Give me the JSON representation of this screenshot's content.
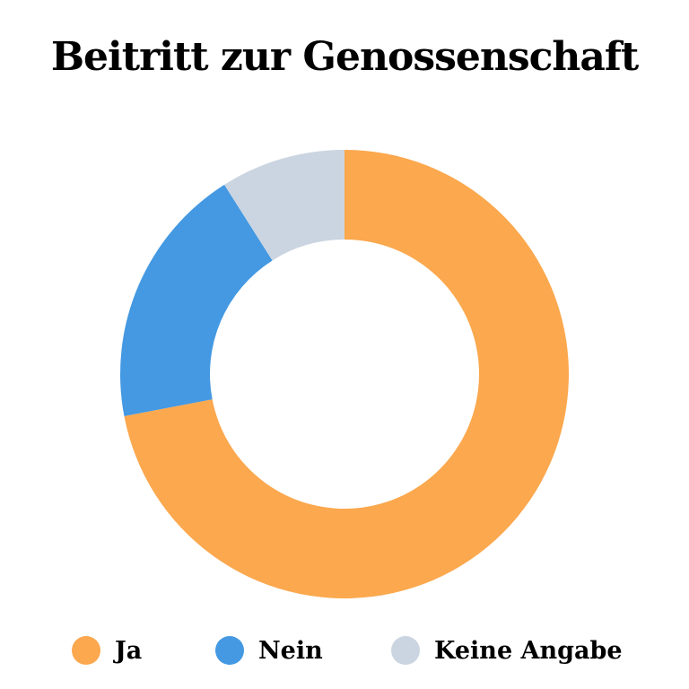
{
  "chart_data": {
    "type": "pie",
    "variant": "donut",
    "title": "Beitritt zur Genossenschaft",
    "categories": [
      "Ja",
      "Nein",
      "Keine Angabe"
    ],
    "values": [
      72,
      19,
      9
    ],
    "unit": "percent",
    "colors": [
      "#FBA84E",
      "#4499E2",
      "#CBD5E1"
    ],
    "legend_position": "bottom"
  }
}
